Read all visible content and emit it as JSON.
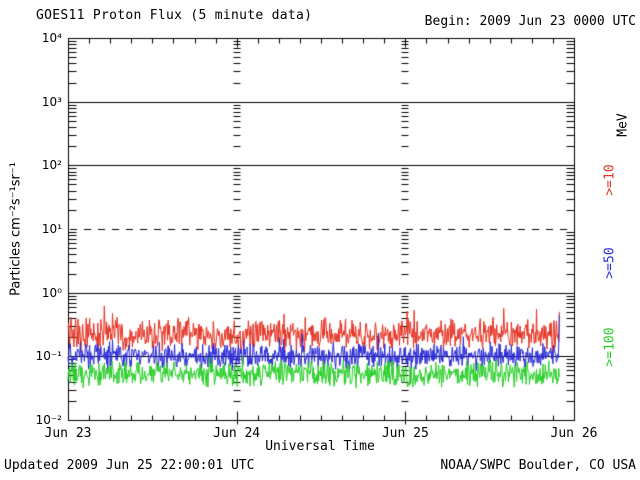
{
  "chart_data": {
    "type": "line",
    "title": "GOES11 Proton Flux (5 minute data)",
    "begin_label": "Begin: 2009 Jun 23 0000 UTC",
    "xlabel": "Universal Time",
    "ylabel": "Particles cm⁻²s⁻¹sr⁻¹",
    "unit_label": "MeV",
    "x_tick_labels": [
      "Jun 23",
      "Jun 24",
      "Jun 25",
      "Jun 26"
    ],
    "x_span_hours": 72,
    "x_minor_tick_hours": 3,
    "x_major_tick_hours": 24,
    "y_log_min": -2,
    "y_log_max": 4,
    "y_tick_labels": [
      "10⁴",
      "10³",
      "10²",
      "10¹",
      "10⁰",
      "10⁻¹",
      "10⁻²"
    ],
    "solid_gridline_decades": [
      3,
      2,
      0,
      -1
    ],
    "dashed_gridline_decades": [
      1
    ],
    "day_marker_hours": [
      24,
      48
    ],
    "cadence_minutes": 5,
    "data_span_hours": 70,
    "grid": true,
    "legend_position": "right",
    "noise_seed": 20090625,
    "series": [
      {
        "label": ">=10",
        "unit": "MeV",
        "color": "#e63223",
        "base_flux": 0.22,
        "log_amplitude": 0.28,
        "spike_prob": 0.05,
        "spike_log": 0.18,
        "end_flux": 0.5
      },
      {
        "label": ">=50",
        "unit": "MeV",
        "color": "#2b2bd9",
        "base_flux": 0.1,
        "log_amplitude": 0.23,
        "spike_prob": 0.03,
        "spike_log": 0.2,
        "end_flux": 0.45
      },
      {
        "label": ">=100",
        "unit": "MeV",
        "color": "#28cf28",
        "base_flux": 0.053,
        "log_amplitude": 0.23,
        "spike_prob": 0.02,
        "spike_log": 0.1,
        "end_flux": null
      }
    ]
  },
  "footer": {
    "updated": "Updated 2009 Jun 25 22:00:01 UTC",
    "source": "NOAA/SWPC Boulder, CO USA"
  },
  "colors": {
    "axis": "#000000",
    "background": "#ffffff",
    "text": "#000000"
  }
}
